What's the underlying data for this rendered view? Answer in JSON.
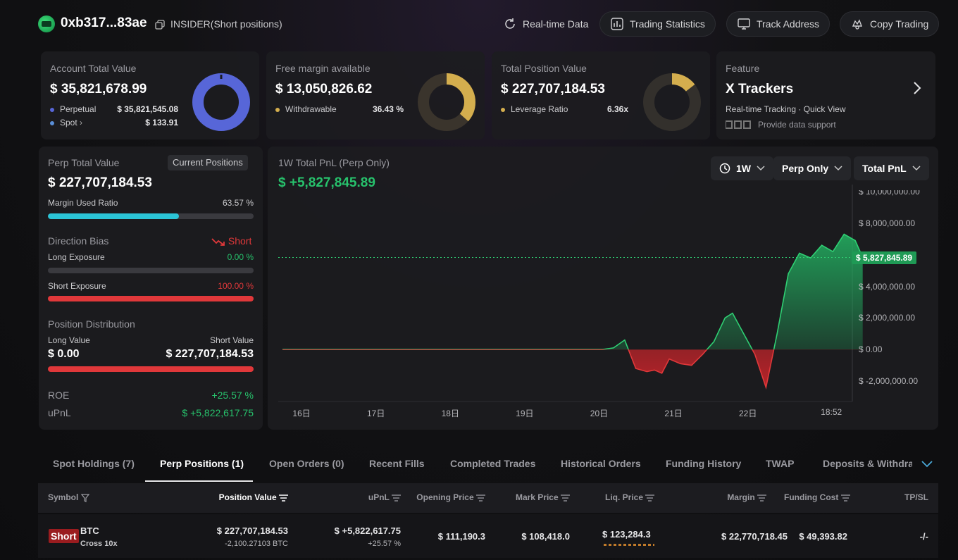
{
  "header": {
    "address": "0xb317...83ae",
    "label": "INSIDER(Short positions)",
    "buttons": {
      "realtime": "Real-time Data",
      "trading_stats": "Trading Statistics",
      "track": "Track Address",
      "copy": "Copy Trading"
    }
  },
  "summary": {
    "account": {
      "title": "Account Total Value",
      "value": "$ 35,821,678.99",
      "perpetual_label": "Perpetual",
      "perpetual_value": "$ 35,821,545.08",
      "spot_label": "Spot",
      "spot_value": "$ 133.91"
    },
    "margin": {
      "title": "Free margin available",
      "value": "$ 13,050,826.62",
      "withdrawable_label": "Withdrawable",
      "withdrawable_value": "36.43 %",
      "donut_fraction": 0.3643
    },
    "position": {
      "title": "Total Position Value",
      "value": "$ 227,707,184.53",
      "leverage_label": "Leverage Ratio",
      "leverage_value": "6.36x"
    },
    "feature": {
      "title": "Feature",
      "name": "X Trackers",
      "desc": "Real-time Tracking · Quick View",
      "provider_note": "Provide data support"
    }
  },
  "perp": {
    "title": "Perp Total Value",
    "badge": "Current Positions",
    "value": "$ 227,707,184.53",
    "margin_used_label": "Margin Used Ratio",
    "margin_used_value": "63.57 %",
    "margin_used_fraction": 0.6357,
    "bias_label": "Direction Bias",
    "bias_value": "Short",
    "long_label": "Long Exposure",
    "long_value": "0.00 %",
    "short_label": "Short Exposure",
    "short_value": "100.00 %",
    "dist_label": "Position Distribution",
    "long_value_label": "Long Value",
    "long_value_amount": "$ 0.00",
    "short_value_label": "Short Value",
    "short_value_amount": "$ 227,707,184.53",
    "roe_label": "ROE",
    "roe_value": "+25.57 %",
    "upnl_label": "uPnL",
    "upnl_value": "$ +5,822,617.75"
  },
  "chart_panel": {
    "title": "1W Total PnL (Perp Only)",
    "value": "$ +5,827,845.89",
    "filters": {
      "period": "1W",
      "scope": "Perp Only",
      "metric": "Total PnL"
    },
    "current_tag": "$ 5,827,845.89"
  },
  "chart_data": {
    "type": "area",
    "title": "1W Total PnL (Perp Only)",
    "y_ticks": [
      "$ 10,000,000.00",
      "$ 8,000,000.00",
      "$ 4,000,000.00",
      "$ 2,000,000.00",
      "$ 0.00",
      "$ -2,000,000.00"
    ],
    "x_ticks": [
      "16日",
      "17日",
      "18日",
      "19日",
      "20日",
      "21日",
      "22日",
      "18:52"
    ],
    "ylim": [
      -2000000,
      10000000
    ],
    "current_value": 5827845.89,
    "series": [
      {
        "values": [
          [
            0,
            0
          ],
          [
            4.3,
            0
          ],
          [
            4.45,
            100000
          ],
          [
            4.6,
            600000
          ],
          [
            4.75,
            -1200000
          ],
          [
            4.9,
            -1400000
          ],
          [
            5.0,
            -1300000
          ],
          [
            5.1,
            -1500000
          ],
          [
            5.2,
            -600000
          ],
          [
            5.35,
            -900000
          ],
          [
            5.5,
            -1000000
          ],
          [
            5.65,
            -300000
          ],
          [
            5.8,
            500000
          ],
          [
            5.95,
            2000000
          ],
          [
            6.05,
            2300000
          ],
          [
            6.2,
            1000000
          ],
          [
            6.35,
            -300000
          ],
          [
            6.5,
            -2400000
          ],
          [
            6.65,
            1000000
          ],
          [
            6.8,
            4800000
          ],
          [
            6.95,
            6100000
          ],
          [
            7.1,
            5800000
          ],
          [
            7.25,
            6600000
          ],
          [
            7.4,
            6200000
          ],
          [
            7.55,
            7300000
          ],
          [
            7.7,
            6900000
          ],
          [
            7.8,
            5827846
          ]
        ]
      }
    ]
  },
  "tabs": [
    "Spot Holdings (7)",
    "Perp Positions (1)",
    "Open Orders (0)",
    "Recent Fills",
    "Completed Trades",
    "Historical Orders",
    "Funding History",
    "TWAP",
    "Deposits & Withdraw"
  ],
  "table": {
    "headers": [
      "Symbol",
      "Position Value",
      "uPnL",
      "Opening Price",
      "Mark Price",
      "Liq. Price",
      "Margin",
      "Funding Cost",
      "TP/SL"
    ],
    "row": {
      "side": "Short",
      "symbol": "BTC",
      "mode": "Cross 10x",
      "position_value": "$ 227,707,184.53",
      "position_size": "-2,100.27103 BTC",
      "upnl": "$ +5,822,617.75",
      "upnl_pct": "+25.57 %",
      "opening_price": "$ 111,190.3",
      "mark_price": "$ 108,418.0",
      "liq_price": "$ 123,284.3",
      "margin": "$ 22,770,718.45",
      "funding_cost": "$ 49,393.82",
      "tpsl": "-/-"
    }
  },
  "colors": {
    "accent_green": "#27c26c",
    "accent_red": "#e0383a",
    "donut_blue": "#5766d8",
    "donut_gold": "#d4ae4e",
    "cyan_bar": "#2bc4d6"
  }
}
